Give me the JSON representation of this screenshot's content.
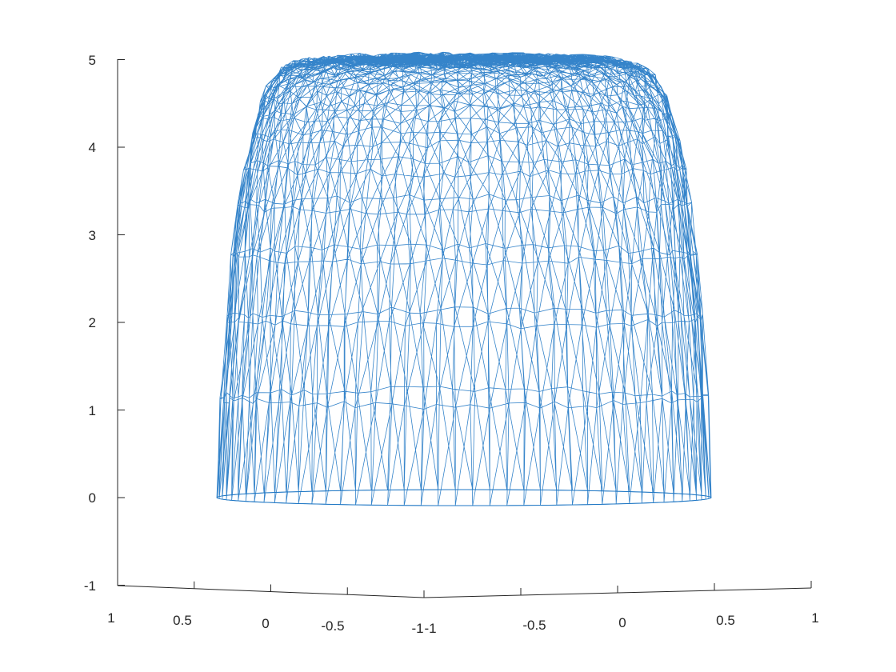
{
  "chart_data": {
    "type": "surface-mesh",
    "colors": {
      "mesh": "#1f77c4",
      "axes": "#262626"
    },
    "zlim": [
      -1,
      5
    ],
    "z_ticks": [
      "-1",
      "0",
      "1",
      "2",
      "3",
      "4",
      "5"
    ],
    "left_axis": {
      "range": [
        -1,
        1
      ],
      "ticks": [
        "1",
        "0.5",
        "0",
        "-0.5",
        "-1"
      ]
    },
    "right_axis": {
      "range": [
        -1,
        1
      ],
      "ticks": [
        "-1",
        "-0.5",
        "0",
        "0.5",
        "1"
      ]
    },
    "surface": {
      "domain": "unit disk",
      "peak_height": 5,
      "base_height": 0,
      "radial_rings": 26,
      "angular_segments": 90,
      "description": "dome-shaped wire mesh, flat top near z = 5 falling steeply to z = 0 at the rim"
    },
    "grid": false,
    "legend": "none"
  }
}
